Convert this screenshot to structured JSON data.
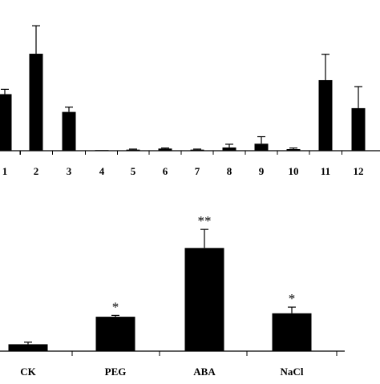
{
  "chart_data": [
    {
      "type": "bar",
      "categories": [
        "1",
        "2",
        "3",
        "4",
        "5",
        "6",
        "7",
        "8",
        "9",
        "10",
        "11",
        "12"
      ],
      "values": [
        1.05,
        1.8,
        0.72,
        0.0,
        0.02,
        0.04,
        0.02,
        0.06,
        0.13,
        0.03,
        1.31,
        0.79
      ],
      "errors": [
        0.09,
        0.52,
        0.09,
        0.0,
        0.01,
        0.01,
        0.01,
        0.06,
        0.13,
        0.02,
        0.48,
        0.4
      ],
      "color": "#000000",
      "ylim": [
        0,
        2.5
      ],
      "grid": false
    },
    {
      "type": "bar",
      "categories": [
        "CK",
        "PEG",
        "ABA",
        "NaCl"
      ],
      "values": [
        1.0,
        5.0,
        15.0,
        5.5
      ],
      "errors": [
        0.3,
        0.2,
        2.7,
        0.9
      ],
      "annotations": [
        "",
        "*",
        "**",
        "*"
      ],
      "color": "#000000",
      "ylim": [
        0,
        19
      ],
      "grid": false
    }
  ]
}
